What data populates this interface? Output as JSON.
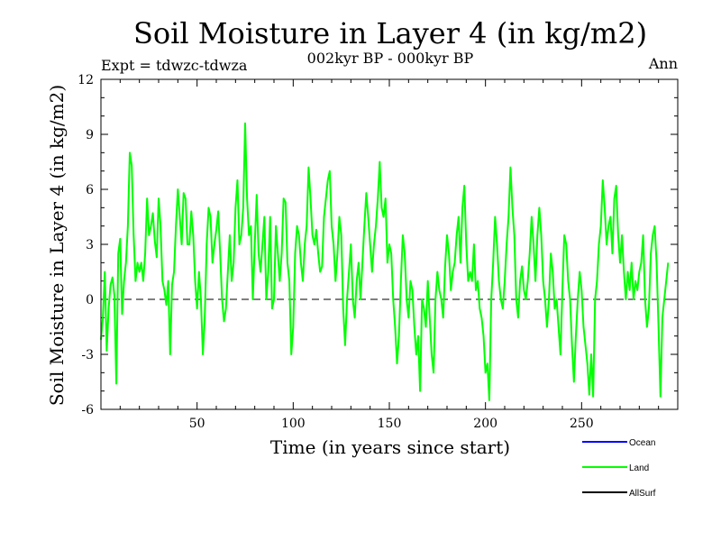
{
  "chart_data": {
    "type": "line",
    "title": "Soil Moisture in Layer 4 (in kg/m2)",
    "subtitle": "002kyr BP - 000kyr BP",
    "expt_label": "Expt = tdwzc-tdwza",
    "season_label": "Ann",
    "xlabel": "Time (in years since start)",
    "ylabel": "Soil Moisture in Layer 4 (in kg/m2)",
    "xlim": [
      0,
      300
    ],
    "ylim": [
      -6,
      12
    ],
    "xticks": [
      50,
      100,
      150,
      200,
      250
    ],
    "yticks": [
      -6,
      -3,
      0,
      3,
      6,
      9,
      12
    ],
    "zero_line": true,
    "colors": {
      "Ocean": "#0000ff",
      "Land": "#00ff00",
      "AllSurf": "#000000"
    },
    "legend": [
      "Ocean",
      "Land",
      "AllSurf"
    ],
    "series": [
      {
        "name": "Land",
        "x_start": 0,
        "x_step": 1,
        "values": [
          -2.2,
          -1.0,
          1.5,
          -2.8,
          -0.5,
          0.8,
          1.2,
          0.2,
          -4.6,
          2.5,
          3.3,
          -0.8,
          1.0,
          2.0,
          4.0,
          8.0,
          7.3,
          3.5,
          1.0,
          2.0,
          1.5,
          2.0,
          1.0,
          2.5,
          5.5,
          3.5,
          4.0,
          4.7,
          3.2,
          2.3,
          5.5,
          4.0,
          1.0,
          0.5,
          -0.3,
          1.0,
          -3.0,
          0.8,
          1.5,
          4.0,
          6.0,
          4.5,
          3.0,
          5.8,
          5.5,
          3.0,
          3.0,
          4.8,
          3.5,
          1.0,
          -0.5,
          1.5,
          0.0,
          -3.0,
          -1.0,
          3.0,
          5.0,
          4.5,
          2.0,
          3.0,
          3.8,
          4.8,
          2.5,
          0.0,
          -1.2,
          -0.5,
          1.5,
          3.5,
          1.0,
          2.0,
          5.0,
          6.5,
          3.0,
          3.5,
          5.0,
          9.6,
          5.5,
          3.5,
          4.0,
          0.0,
          3.0,
          5.7,
          2.5,
          1.5,
          3.0,
          4.5,
          0.0,
          1.5,
          4.5,
          -0.5,
          0.0,
          4.0,
          2.5,
          1.0,
          2.5,
          5.5,
          5.3,
          2.0,
          1.0,
          -3.0,
          -1.5,
          2.5,
          4.0,
          3.5,
          2.0,
          1.0,
          3.0,
          4.0,
          7.2,
          5.5,
          3.5,
          3.0,
          3.8,
          2.5,
          1.5,
          1.8,
          4.5,
          5.5,
          6.5,
          7.0,
          4.0,
          3.0,
          1.0,
          2.5,
          4.5,
          3.5,
          -0.5,
          -2.5,
          0.0,
          1.5,
          3.0,
          0.0,
          -1.0,
          1.0,
          2.0,
          0.0,
          2.0,
          4.0,
          5.8,
          4.5,
          3.0,
          1.5,
          3.0,
          4.0,
          5.5,
          7.5,
          5.0,
          4.5,
          5.5,
          2.0,
          3.0,
          2.5,
          0.0,
          -1.5,
          -3.5,
          -2.0,
          1.0,
          3.5,
          2.5,
          0.0,
          -1.0,
          1.0,
          0.5,
          -1.5,
          -3.0,
          -2.0,
          -5.0,
          0.0,
          -0.5,
          -1.5,
          1.0,
          -1.0,
          -3.0,
          -4.0,
          0.0,
          1.5,
          0.5,
          0.0,
          -1.0,
          1.8,
          3.5,
          2.5,
          0.5,
          1.5,
          2.0,
          3.5,
          4.5,
          2.0,
          5.0,
          6.2,
          3.0,
          1.0,
          1.5,
          1.0,
          3.0,
          0.5,
          1.0,
          -0.5,
          -1.0,
          -2.0,
          -4.0,
          -3.5,
          -5.5,
          0.0,
          2.0,
          4.5,
          3.0,
          1.0,
          0.0,
          -0.5,
          1.0,
          3.0,
          4.5,
          7.2,
          5.0,
          3.5,
          0.0,
          -1.0,
          1.0,
          1.8,
          0.5,
          0.0,
          1.0,
          2.5,
          4.5,
          3.0,
          1.0,
          3.5,
          5.0,
          3.5,
          1.0,
          0.0,
          -1.5,
          0.0,
          2.5,
          1.5,
          -0.5,
          0.0,
          -1.5,
          -3.0,
          0.5,
          3.5,
          3.0,
          1.0,
          0.0,
          -2.5,
          -4.5,
          -2.0,
          0.0,
          1.5,
          0.5,
          -1.5,
          -2.5,
          -3.5,
          -5.2,
          -3.0,
          -5.3,
          0.0,
          1.0,
          3.0,
          4.0,
          6.5,
          5.0,
          3.0,
          4.0,
          4.5,
          2.5,
          5.5,
          6.2,
          3.5,
          2.0,
          3.5,
          1.5,
          0.0,
          1.5,
          0.5,
          2.0,
          0.0,
          1.0,
          0.5,
          1.5,
          2.0,
          3.5,
          0.0,
          -1.5,
          -0.5,
          2.5,
          3.5,
          4.0,
          2.0,
          -1.5,
          -5.3,
          -1.0,
          0.0,
          1.0,
          2.0
        ]
      },
      {
        "name": "Ocean",
        "values": []
      },
      {
        "name": "AllSurf",
        "values": []
      }
    ]
  }
}
